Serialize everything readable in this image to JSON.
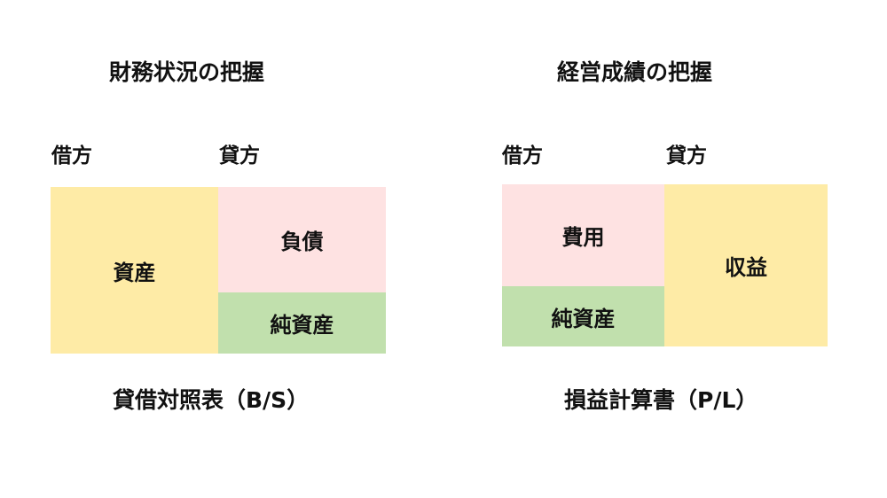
{
  "colors": {
    "asset_yellow": "#FEEBA6",
    "liability_pink": "#FEE2E2",
    "equity_green": "#C1E0AD"
  },
  "balance_sheet": {
    "title": "財務状況の把握",
    "debit": "借方",
    "credit": "貸方",
    "assets": "資産",
    "liabilities": "負債",
    "net_assets": "純資産",
    "caption": "貸借対照表（B/S）"
  },
  "income_statement": {
    "title": "経営成績の把握",
    "debit": "借方",
    "credit": "貸方",
    "expenses": "費用",
    "net_assets": "純資産",
    "revenue": "収益",
    "caption": "損益計算書（P/L）"
  }
}
